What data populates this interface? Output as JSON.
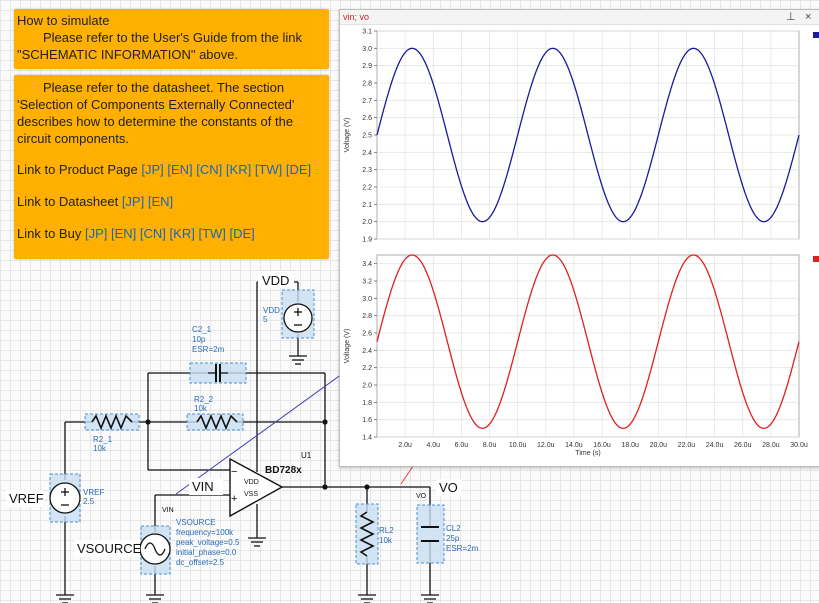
{
  "note1": {
    "heading": "How to simulate",
    "body": "Please refer to the User's Guide from the link \"SCHEMATIC INFORMATION\" above."
  },
  "note2": {
    "body": "Please refer to the datasheet. The section 'Selection of Components Externally Connected' describes how to determine the constants of the circuit components.",
    "product_label": "Link to Product Page",
    "datasheet_label": "Link to Datasheet",
    "buy_label": "Link to Buy",
    "product_links": [
      "[JP]",
      "[EN]",
      "[CN]",
      "[KR]",
      "[TW]",
      "[DE]"
    ],
    "datasheet_links": [
      "[JP]",
      "[EN]"
    ],
    "buy_links": [
      "[JP]",
      "[EN]",
      "[CN]",
      "[KR]",
      "[TW]",
      "[DE]"
    ]
  },
  "schematic": {
    "vdd_net": "VDD",
    "vdd_source": {
      "name": "VDD",
      "value": "5"
    },
    "c2": {
      "name": "C2_1",
      "value": "10p",
      "esr": "ESR=2m"
    },
    "r2_2": {
      "name": "R2_2",
      "value": "10k"
    },
    "r2_1": {
      "name": "R2_1",
      "value": "10k"
    },
    "u1": {
      "ref": "U1",
      "part": "BD728x",
      "pin_vdd": "VDD",
      "pin_vss": "VSS",
      "minus": "−",
      "plus": "+"
    },
    "vin_label": "VIN",
    "vin_net": "VIN",
    "vref": {
      "net": "VREF",
      "name": "VREF",
      "value": "2.5"
    },
    "vsource": {
      "net": "VSOURCE",
      "name": "VSOURCE",
      "params": [
        "frequency=100k",
        "peak_voltage=0.5",
        "initial_phase=0.0",
        "dc_offset=2.5"
      ]
    },
    "vo_net": "VO",
    "vo_small": "VO",
    "rl2": {
      "name": "RL2",
      "value": "10k"
    },
    "cl2": {
      "name": "CL2",
      "value": "25p",
      "esr": "ESR=2m"
    }
  },
  "plot_window": {
    "title": "vin; vo",
    "pin_icon": "pin-icon",
    "close_icon": "close-icon",
    "pin_glyph": "⊥",
    "close_glyph": "×"
  },
  "chart_data": [
    {
      "type": "line",
      "title": "",
      "xlabel": "",
      "ylabel": "Voltage (V)",
      "ylim": [
        1.9,
        3.1
      ],
      "yticks": [
        1.9,
        2.0,
        2.1,
        2.2,
        2.3,
        2.4,
        2.5,
        2.6,
        2.7,
        2.8,
        2.9,
        3.0,
        3.1
      ],
      "xlim": [
        0,
        30
      ],
      "grid": true,
      "series": [
        {
          "color": "#1a1a9c",
          "function": "2.5 + 0.5*sin(2*pi*x/10)",
          "x_unit": "u"
        }
      ]
    },
    {
      "type": "line",
      "title": "",
      "xlabel": "Time (s)",
      "ylabel": "Voltage (V)",
      "ylim": [
        1.4,
        3.5
      ],
      "yticks": [
        1.4,
        1.6,
        1.8,
        2.0,
        2.2,
        2.4,
        2.6,
        2.8,
        3.0,
        3.2,
        3.4
      ],
      "xlim": [
        0,
        30
      ],
      "xticks": [
        "2.0u",
        "4.0u",
        "6.0u",
        "8.0u",
        "10.0u",
        "12.0u",
        "14.0u",
        "16.0u",
        "18.0u",
        "20.0u",
        "22.0u",
        "24.0u",
        "26.0u",
        "28.0u",
        "30.0u"
      ],
      "grid": true,
      "series": [
        {
          "color": "#e02020",
          "function": "2.5 + 1.0*sin(2*pi*x/10)",
          "x_unit": "u"
        }
      ]
    }
  ]
}
